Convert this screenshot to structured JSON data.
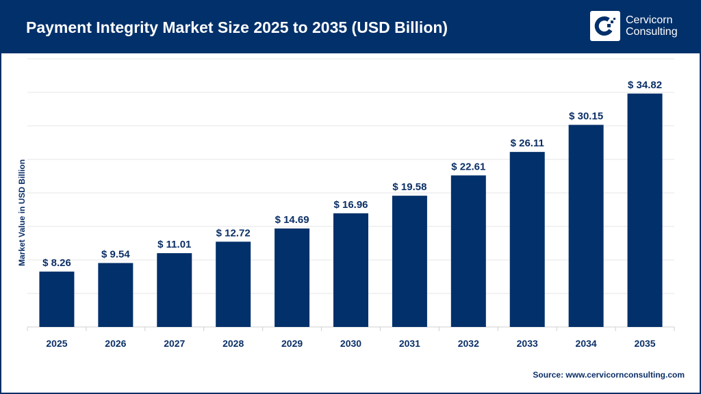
{
  "header": {
    "title": "Payment Integrity Market Size 2025 to 2035 (USD Billion)",
    "logo_line1": "Cervicorn",
    "logo_line2": "Consulting"
  },
  "source": "Source: www.cervicornconsulting.com",
  "colors": {
    "bar": "#02306a",
    "header": "#02306a",
    "grid": "#e6e6e6"
  },
  "chart_data": {
    "type": "bar",
    "title": "Payment Integrity Market Size 2025 to 2035 (USD Billion)",
    "xlabel": "",
    "ylabel": "Market Value in USD Billion",
    "categories": [
      "2025",
      "2026",
      "2027",
      "2028",
      "2029",
      "2030",
      "2031",
      "2032",
      "2033",
      "2034",
      "2035"
    ],
    "values": [
      8.26,
      9.54,
      11.01,
      12.72,
      14.69,
      16.96,
      19.58,
      22.61,
      26.11,
      30.15,
      34.82
    ],
    "data_labels": [
      "$ 8.26",
      "$ 9.54",
      "$ 11.01",
      "$ 12.72",
      "$ 14.69",
      "$ 16.96",
      "$ 19.58",
      "$ 22.61",
      "$ 26.11",
      "$ 30.15",
      "$ 34.82"
    ],
    "ylim": [
      0,
      40
    ],
    "grid": true,
    "legend": "none"
  }
}
